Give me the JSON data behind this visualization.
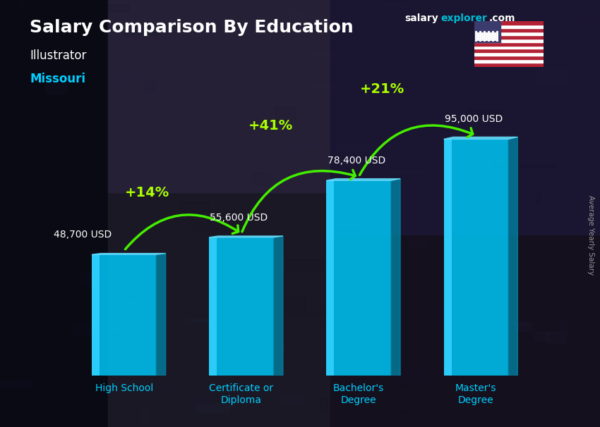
{
  "title": "Salary Comparison By Education",
  "subtitle1": "Illustrator",
  "subtitle2": "Missouri",
  "categories": [
    "High School",
    "Certificate or\nDiploma",
    "Bachelor's\nDegree",
    "Master's\nDegree"
  ],
  "values": [
    48700,
    55600,
    78400,
    95000
  ],
  "value_labels": [
    "48,700 USD",
    "55,600 USD",
    "78,400 USD",
    "95,000 USD"
  ],
  "pct_labels": [
    "+14%",
    "+41%",
    "+21%"
  ],
  "bar_color_main": "#00b8e6",
  "bar_color_light": "#33d4ff",
  "bar_color_dark": "#0088aa",
  "bar_color_top": "#66e0ff",
  "background_color": "#1c2030",
  "title_color": "#ffffff",
  "subtitle1_color": "#ffffff",
  "subtitle2_color": "#00cfff",
  "value_label_color": "#ffffff",
  "pct_color": "#aaff00",
  "arrow_color": "#44ee00",
  "xtick_color": "#00cfff",
  "ylabel": "Average Yearly Salary",
  "ylabel_color": "#aaaaaa",
  "ylim": [
    0,
    120000
  ],
  "bar_width": 0.55,
  "logo_salary_color": "#ffffff",
  "logo_explorer_color": "#00bcd4",
  "logo_com_color": "#ffffff"
}
